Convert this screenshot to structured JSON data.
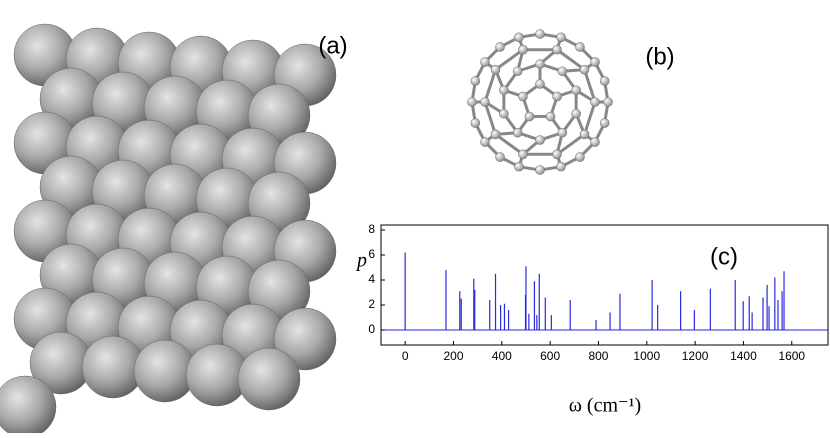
{
  "panels": {
    "a": "(a)",
    "b": "(b)"
  },
  "chart_data": {
    "type": "stem",
    "annotation": "(c)",
    "x_label": "ω  (cm⁻¹)",
    "y_label": "p",
    "color": "#2a2ae0",
    "x": [
      0,
      169,
      226,
      232,
      284,
      288,
      350,
      374,
      395,
      411,
      428,
      498,
      500,
      512,
      535,
      545,
      555,
      580,
      605,
      683,
      790,
      848,
      889,
      1022,
      1045,
      1140,
      1197,
      1263,
      1366,
      1399,
      1424,
      1436,
      1481,
      1498,
      1506,
      1530,
      1543,
      1560,
      1568
    ],
    "values": [
      6.2,
      4.8,
      3.1,
      2.5,
      4.1,
      3.2,
      2.4,
      4.5,
      2.0,
      2.1,
      1.6,
      2.8,
      5.1,
      1.3,
      3.9,
      1.2,
      4.5,
      2.6,
      1.2,
      2.4,
      0.8,
      1.4,
      2.9,
      4.0,
      2.0,
      3.1,
      1.6,
      3.3,
      4.0,
      2.3,
      2.7,
      1.4,
      2.6,
      3.6,
      1.9,
      4.2,
      2.4,
      3.1,
      4.7
    ],
    "xlim": [
      -100,
      1750
    ],
    "ylim": [
      -1.2,
      8.4
    ],
    "xticks": [
      0,
      200,
      400,
      600,
      800,
      1000,
      1200,
      1400,
      1600
    ],
    "yticks": [
      0,
      2,
      4,
      6,
      8
    ]
  }
}
